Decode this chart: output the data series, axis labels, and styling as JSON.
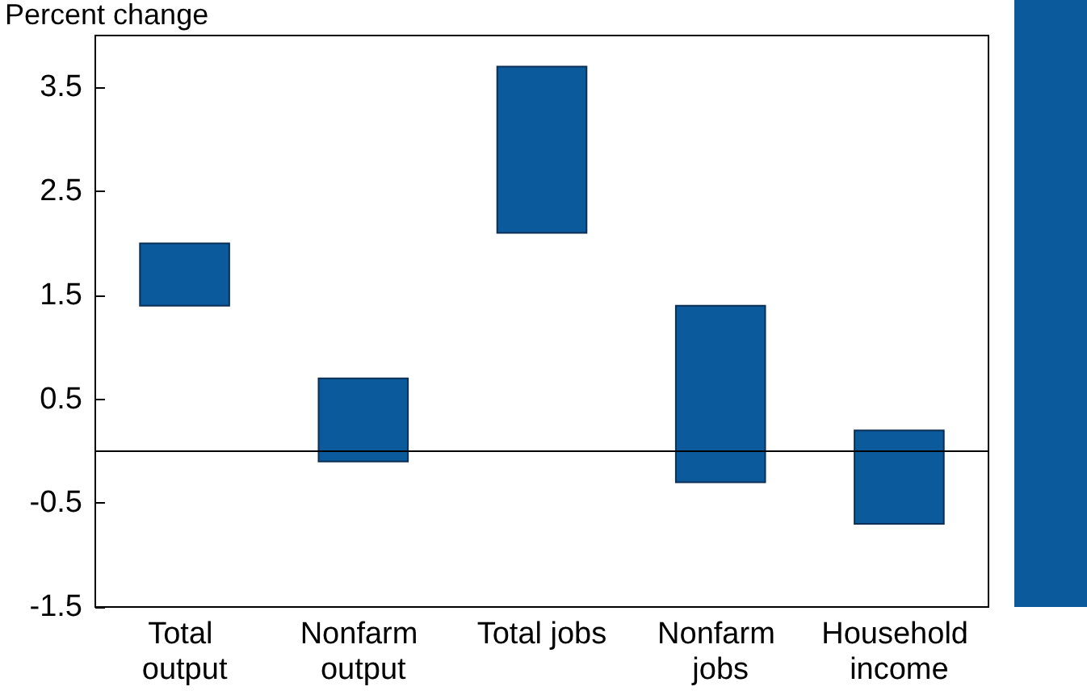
{
  "chart_data": {
    "type": "bar",
    "ylabel": "Percent change",
    "categories": [
      "Total output",
      "Nonfarm output",
      "Total jobs",
      "Nonfarm jobs",
      "Household income"
    ],
    "base": [
      1.4,
      -0.1,
      2.1,
      -0.3,
      -0.7
    ],
    "values": [
      0.6,
      0.8,
      1.6,
      1.7,
      0.9
    ],
    "color": "#0a5a9c",
    "ylim": [
      -1.5,
      4
    ],
    "yticks": [
      -1.5,
      -0.5,
      0.5,
      1.5,
      2.5,
      3.5
    ],
    "ref_lines": [
      {
        "axis": "y",
        "value": 0,
        "color": "#000000"
      }
    ],
    "grid": false
  }
}
